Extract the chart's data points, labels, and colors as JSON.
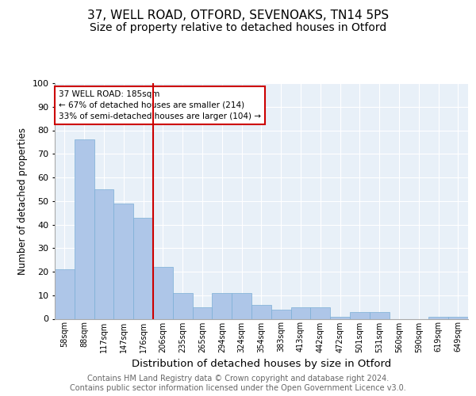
{
  "title1": "37, WELL ROAD, OTFORD, SEVENOAKS, TN14 5PS",
  "title2": "Size of property relative to detached houses in Otford",
  "xlabel": "Distribution of detached houses by size in Otford",
  "ylabel": "Number of detached properties",
  "categories": [
    "58sqm",
    "88sqm",
    "117sqm",
    "147sqm",
    "176sqm",
    "206sqm",
    "235sqm",
    "265sqm",
    "294sqm",
    "324sqm",
    "354sqm",
    "383sqm",
    "413sqm",
    "442sqm",
    "472sqm",
    "501sqm",
    "531sqm",
    "560sqm",
    "590sqm",
    "619sqm",
    "649sqm"
  ],
  "values": [
    21,
    76,
    55,
    49,
    43,
    22,
    11,
    5,
    11,
    11,
    6,
    4,
    5,
    5,
    1,
    3,
    3,
    0,
    0,
    1,
    1
  ],
  "bar_color": "#aec6e8",
  "bar_edge_color": "#7aaed6",
  "vline_x": 4.5,
  "vline_color": "#cc0000",
  "annotation_line1": "37 WELL ROAD: 185sqm",
  "annotation_line2": "← 67% of detached houses are smaller (214)",
  "annotation_line3": "33% of semi-detached houses are larger (104) →",
  "annotation_box_color": "#ffffff",
  "annotation_box_edge": "#cc0000",
  "ylim": [
    0,
    100
  ],
  "yticks": [
    0,
    10,
    20,
    30,
    40,
    50,
    60,
    70,
    80,
    90,
    100
  ],
  "background_color": "#e8f0f8",
  "footer_text": "Contains HM Land Registry data © Crown copyright and database right 2024.\nContains public sector information licensed under the Open Government Licence v3.0.",
  "title1_fontsize": 11,
  "title2_fontsize": 10,
  "xlabel_fontsize": 9.5,
  "ylabel_fontsize": 8.5,
  "footer_fontsize": 7,
  "tick_fontsize": 7,
  "ytick_fontsize": 8,
  "annot_fontsize": 7.5
}
